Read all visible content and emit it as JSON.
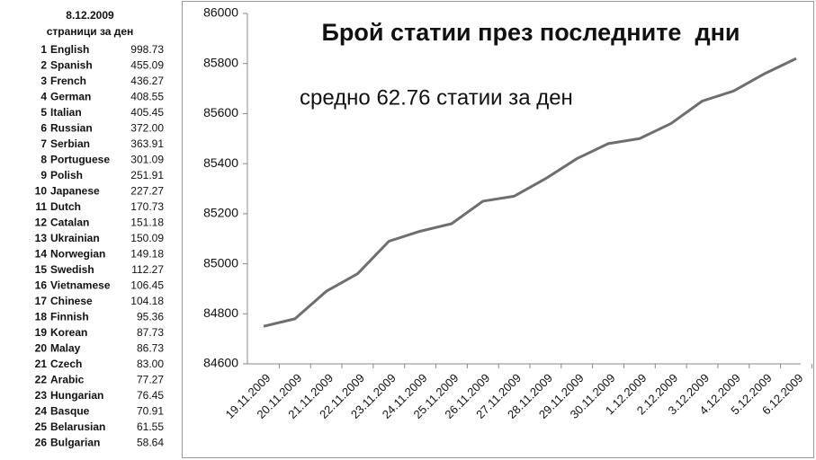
{
  "table": {
    "title": "8.12.2009",
    "subtitle": "страници за ден",
    "rows": [
      [
        "1",
        "English",
        "998.73"
      ],
      [
        "2",
        "Spanish",
        "455.09"
      ],
      [
        "3",
        "French",
        "436.27"
      ],
      [
        "4",
        "German",
        "408.55"
      ],
      [
        "5",
        "Italian",
        "405.45"
      ],
      [
        "6",
        "Russian",
        "372.00"
      ],
      [
        "7",
        "Serbian",
        "363.91"
      ],
      [
        "8",
        "Portuguese",
        "301.09"
      ],
      [
        "9",
        "Polish",
        "251.91"
      ],
      [
        "10",
        "Japanese",
        "227.27"
      ],
      [
        "11",
        "Dutch",
        "170.73"
      ],
      [
        "12",
        "Catalan",
        "151.18"
      ],
      [
        "13",
        "Ukrainian",
        "150.09"
      ],
      [
        "14",
        "Norwegian",
        "149.18"
      ],
      [
        "15",
        "Swedish",
        "112.27"
      ],
      [
        "16",
        "Vietnamese",
        "106.45"
      ],
      [
        "17",
        "Chinese",
        "104.18"
      ],
      [
        "18",
        "Finnish",
        "95.36"
      ],
      [
        "19",
        "Korean",
        "87.73"
      ],
      [
        "20",
        "Malay",
        "86.73"
      ],
      [
        "21",
        "Czech",
        "83.00"
      ],
      [
        "22",
        "Arabic",
        "77.27"
      ],
      [
        "23",
        "Hungarian",
        "76.45"
      ],
      [
        "24",
        "Basque",
        "70.91"
      ],
      [
        "25",
        "Belarusian",
        "61.55"
      ],
      [
        "26",
        "Bulgarian",
        "58.64"
      ]
    ]
  },
  "chart_data": {
    "type": "line",
    "title": "Брой статии през последните  дни",
    "annotation": "средно 62.76 статии за ден",
    "categories": [
      "19.11.2009",
      "20.11.2009",
      "21.11.2009",
      "22.11.2009",
      "23.11.2009",
      "24.11.2009",
      "25.11.2009",
      "26.11.2009",
      "27.11.2009",
      "28.11.2009",
      "29.11.2009",
      "30.11.2009",
      "1.12.2009",
      "2.12.2009",
      "3.12.2009",
      "4.12.2009",
      "5.12.2009",
      "6.12.2009"
    ],
    "values": [
      84750,
      84780,
      84890,
      84960,
      85090,
      85130,
      85160,
      85250,
      85270,
      85340,
      85420,
      85480,
      85500,
      85560,
      85650,
      85690,
      85760,
      85820
    ],
    "color": "#6e6e6e",
    "ylim": [
      84600,
      86000
    ],
    "yticks": [
      84600,
      84800,
      85000,
      85200,
      85400,
      85600,
      85800,
      86000
    ]
  }
}
